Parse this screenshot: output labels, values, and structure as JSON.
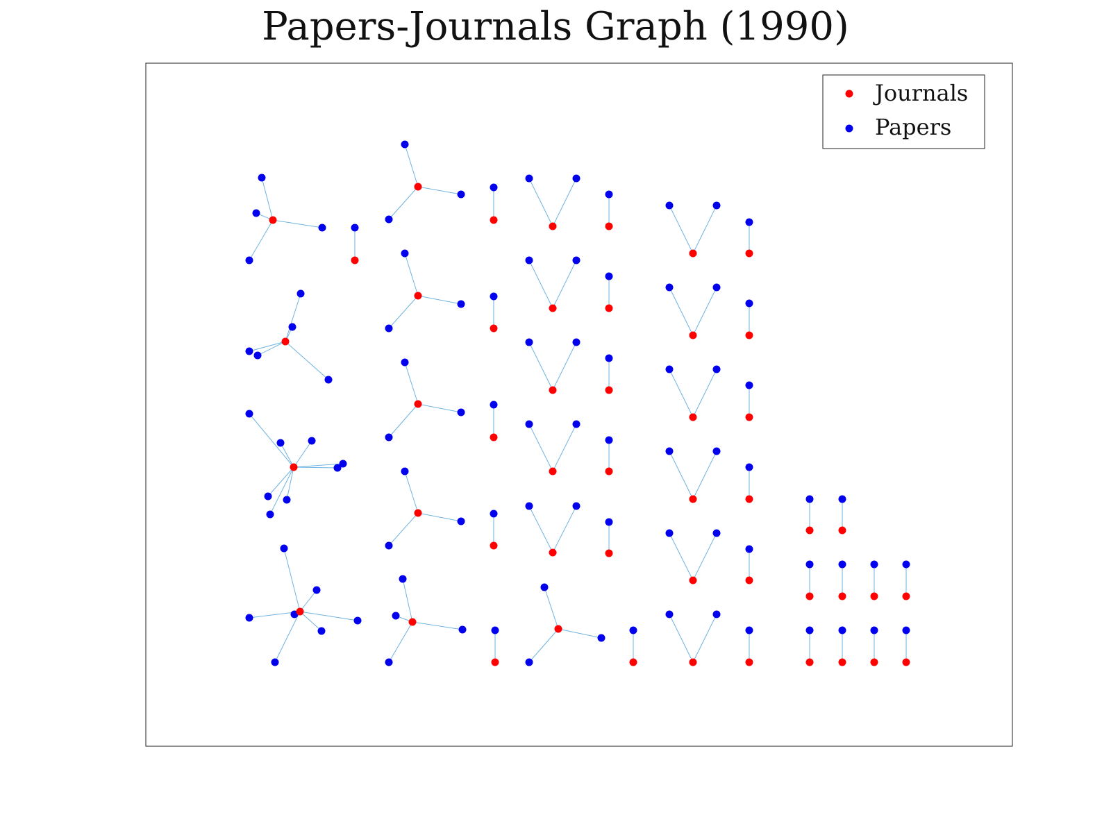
{
  "title": "Papers-Journals Graph (1990)",
  "legend": {
    "journals_label": "Journals",
    "papers_label": "Papers",
    "journal_color": "#ff0000",
    "paper_color": "#0000ee"
  },
  "edge_color": "#6fb3e0",
  "components": [
    {
      "journal": [
        393,
        317
      ],
      "papers": [
        [
          377,
          256
        ],
        [
          369,
          307
        ],
        [
          464,
          328
        ],
        [
          359,
          375
        ]
      ]
    },
    {
      "journal": [
        511,
        375
      ],
      "papers": [
        [
          511,
          328
        ]
      ]
    },
    {
      "journal": [
        411,
        492
      ],
      "papers": [
        [
          433,
          423
        ],
        [
          421,
          471
        ],
        [
          359,
          506
        ],
        [
          371,
          512
        ],
        [
          473,
          547
        ]
      ]
    },
    {
      "journal": [
        423,
        673
      ],
      "papers": [
        [
          359,
          596
        ],
        [
          404,
          638
        ],
        [
          449,
          635
        ],
        [
          486,
          674
        ],
        [
          494,
          668
        ],
        [
          386,
          715
        ],
        [
          413,
          720
        ],
        [
          389,
          741
        ]
      ]
    },
    {
      "journal": [
        432,
        881
      ],
      "papers": [
        [
          409,
          790
        ],
        [
          456,
          850
        ],
        [
          424,
          885
        ],
        [
          359,
          890
        ],
        [
          463,
          909
        ],
        [
          515,
          894
        ],
        [
          396,
          954
        ]
      ]
    },
    {
      "journal": [
        602,
        269
      ],
      "papers": [
        [
          583,
          208
        ],
        [
          664,
          280
        ],
        [
          560,
          316
        ]
      ]
    },
    {
      "journal": [
        602,
        426
      ],
      "papers": [
        [
          583,
          365
        ],
        [
          664,
          438
        ],
        [
          560,
          473
        ]
      ]
    },
    {
      "journal": [
        602,
        582
      ],
      "papers": [
        [
          583,
          522
        ],
        [
          664,
          594
        ],
        [
          560,
          630
        ]
      ]
    },
    {
      "journal": [
        602,
        739
      ],
      "papers": [
        [
          583,
          679
        ],
        [
          664,
          751
        ],
        [
          560,
          786
        ]
      ]
    },
    {
      "journal": [
        594,
        896
      ],
      "papers": [
        [
          580,
          834
        ],
        [
          570,
          887
        ],
        [
          666,
          907
        ],
        [
          560,
          954
        ]
      ]
    },
    {
      "journal": [
        711,
        317
      ],
      "papers": [
        [
          711,
          270
        ]
      ]
    },
    {
      "journal": [
        711,
        473
      ],
      "papers": [
        [
          711,
          427
        ]
      ]
    },
    {
      "journal": [
        711,
        630
      ],
      "papers": [
        [
          711,
          583
        ]
      ]
    },
    {
      "journal": [
        711,
        786
      ],
      "papers": [
        [
          711,
          740
        ]
      ]
    },
    {
      "journal": [
        713,
        954
      ],
      "papers": [
        [
          713,
          908
        ]
      ]
    },
    {
      "journal": [
        796,
        326
      ],
      "papers": [
        [
          762,
          257
        ],
        [
          830,
          257
        ]
      ]
    },
    {
      "journal": [
        796,
        444
      ],
      "papers": [
        [
          762,
          375
        ],
        [
          830,
          375
        ]
      ]
    },
    {
      "journal": [
        796,
        562
      ],
      "papers": [
        [
          762,
          493
        ],
        [
          830,
          493
        ]
      ]
    },
    {
      "journal": [
        796,
        679
      ],
      "papers": [
        [
          762,
          611
        ],
        [
          830,
          611
        ]
      ]
    },
    {
      "journal": [
        796,
        796
      ],
      "papers": [
        [
          762,
          729
        ],
        [
          830,
          729
        ]
      ]
    },
    {
      "journal": [
        804,
        906
      ],
      "papers": [
        [
          784,
          846
        ],
        [
          866,
          919
        ],
        [
          762,
          954
        ]
      ]
    },
    {
      "journal": [
        877,
        326
      ],
      "papers": [
        [
          877,
          280
        ]
      ]
    },
    {
      "journal": [
        877,
        444
      ],
      "papers": [
        [
          877,
          398
        ]
      ]
    },
    {
      "journal": [
        877,
        562
      ],
      "papers": [
        [
          877,
          516
        ]
      ]
    },
    {
      "journal": [
        877,
        679
      ],
      "papers": [
        [
          877,
          634
        ]
      ]
    },
    {
      "journal": [
        877,
        797
      ],
      "papers": [
        [
          877,
          752
        ]
      ]
    },
    {
      "journal": [
        912,
        954
      ],
      "papers": [
        [
          912,
          908
        ]
      ]
    },
    {
      "journal": [
        998,
        365
      ],
      "papers": [
        [
          964,
          296
        ],
        [
          1032,
          296
        ]
      ]
    },
    {
      "journal": [
        998,
        483
      ],
      "papers": [
        [
          964,
          414
        ],
        [
          1032,
          414
        ]
      ]
    },
    {
      "journal": [
        998,
        601
      ],
      "papers": [
        [
          964,
          532
        ],
        [
          1032,
          532
        ]
      ]
    },
    {
      "journal": [
        998,
        719
      ],
      "papers": [
        [
          964,
          650
        ],
        [
          1032,
          650
        ]
      ]
    },
    {
      "journal": [
        998,
        836
      ],
      "papers": [
        [
          964,
          768
        ],
        [
          1032,
          768
        ]
      ]
    },
    {
      "journal": [
        998,
        954
      ],
      "papers": [
        [
          964,
          885
        ],
        [
          1032,
          885
        ]
      ]
    },
    {
      "journal": [
        1079,
        365
      ],
      "papers": [
        [
          1079,
          320
        ]
      ]
    },
    {
      "journal": [
        1079,
        483
      ],
      "papers": [
        [
          1079,
          437
        ]
      ]
    },
    {
      "journal": [
        1079,
        601
      ],
      "papers": [
        [
          1079,
          555
        ]
      ]
    },
    {
      "journal": [
        1079,
        719
      ],
      "papers": [
        [
          1079,
          673
        ]
      ]
    },
    {
      "journal": [
        1079,
        836
      ],
      "papers": [
        [
          1079,
          791
        ]
      ]
    },
    {
      "journal": [
        1079,
        954
      ],
      "papers": [
        [
          1079,
          908
        ]
      ]
    },
    {
      "journal": [
        1166,
        764
      ],
      "papers": [
        [
          1166,
          719
        ]
      ]
    },
    {
      "journal": [
        1213,
        764
      ],
      "papers": [
        [
          1213,
          719
        ]
      ]
    },
    {
      "journal": [
        1166,
        859
      ],
      "papers": [
        [
          1166,
          813
        ]
      ]
    },
    {
      "journal": [
        1213,
        859
      ],
      "papers": [
        [
          1213,
          813
        ]
      ]
    },
    {
      "journal": [
        1259,
        859
      ],
      "papers": [
        [
          1259,
          813
        ]
      ]
    },
    {
      "journal": [
        1305,
        859
      ],
      "papers": [
        [
          1305,
          813
        ]
      ]
    },
    {
      "journal": [
        1166,
        954
      ],
      "papers": [
        [
          1166,
          908
        ]
      ]
    },
    {
      "journal": [
        1213,
        954
      ],
      "papers": [
        [
          1213,
          908
        ]
      ]
    },
    {
      "journal": [
        1259,
        954
      ],
      "papers": [
        [
          1259,
          908
        ]
      ]
    },
    {
      "journal": [
        1305,
        954
      ],
      "papers": [
        [
          1305,
          908
        ]
      ]
    }
  ]
}
